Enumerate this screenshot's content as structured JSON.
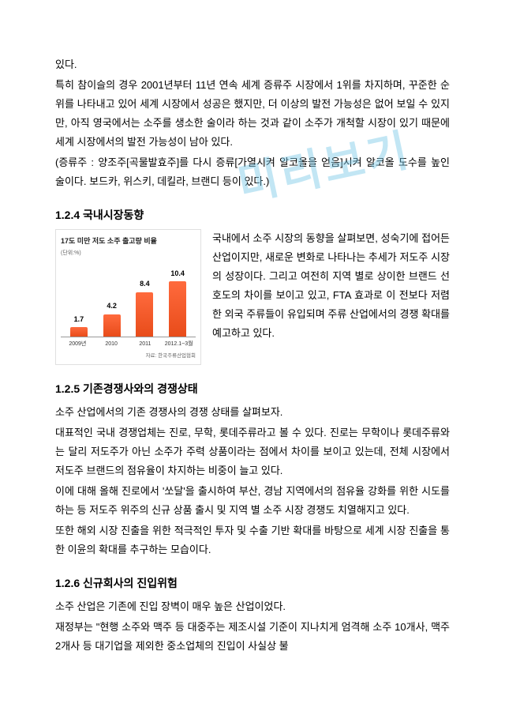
{
  "watermark": "미리보기",
  "intro": {
    "p1": "있다.",
    "p2": "특히 참이슬의 경우 2001년부터 11년 연속 세계 증류주 시장에서 1위를 차지하며, 꾸준한 순위를 나타내고 있어 세계 시장에서 성공은 했지만, 더 이상의 발전 가능성은 없어 보일 수 있지만, 아직 영국에서는 소주를 생소한 술이라 하는 것과 같이 소주가 개척할 시장이 있기 때문에 세계 시장에서의 발전 가능성이 남아 있다.",
    "p3": "(증류주 : 양조주[곡물발효주]를 다시 증류[가열시켜 알코올을 얻음]시켜 알코올 도수를 높인 술이다. 보드카, 위스키, 데킬라, 브랜디 등이 있다.)"
  },
  "s124": {
    "heading": "1.2.4 국내시장동향",
    "chart": {
      "title": "17도 미만 저도 소주 출고량 비율",
      "unit": "(단위:%)",
      "categories": [
        "2009년",
        "2010",
        "2011",
        "2012.1~3월"
      ],
      "values": [
        1.7,
        4.2,
        8.4,
        10.4
      ],
      "labels": [
        "1.7",
        "4.2",
        "8.4",
        "10.4"
      ],
      "max": 12,
      "bar_color_top": "#ff6a3d",
      "bar_color_bottom": "#e84c1a",
      "source": "자료: 한국주류산업협회"
    },
    "text": "국내에서 소주 시장의 동향을 살펴보면, 성숙기에 접어든 산업이지만, 새로운 변화로 나타나는 추세가 저도주 시장의 성장이다. 그리고 여전히 지역 별로 상이한 브랜드 선호도의 차이를 보이고 있고, FTA 효과로 이 전보다 저렴한 외국 주류들이 유입되며 주류 산업에서의 경쟁 확대를 예고하고 있다."
  },
  "s125": {
    "heading": "1.2.5 기존경쟁사와의 경쟁상태",
    "p1": "소주 산업에서의 기존 경쟁사의 경쟁 상태를 살펴보자.",
    "p2": "대표적인 국내 경쟁업체는 진로, 무학, 롯데주류라고 볼 수 있다. 진로는 무학이나 롯데주류와는 달리 저도주가 아닌 소주가 주력 상품이라는 점에서 차이를 보이고 있는데, 전체 시장에서 저도주 브랜드의 점유율이 차지하는 비중이 늘고 있다.",
    "p3": "이에 대해 올해 진로에서 '쏘달'을 출시하여 부산, 경남 지역에서의 점유율 강화를 위한 시도를 하는 등 저도주 위주의 신규 상품 출시 및 지역 별 소주 시장 경쟁도 치열해지고 있다.",
    "p4": "또한 해외 시장 진출을 위한 적극적인 투자 및 수출 기반 확대를 바탕으로 세계 시장 진출을 통한 이윤의 확대를 추구하는 모습이다."
  },
  "s126": {
    "heading": "1.2.6 신규회사의 진입위험",
    "p1": "소주 산업은 기존에 진입 장벽이 매우 높은 산업이었다.",
    "p2": "재정부는 \"현행 소주와 맥주 등 대중주는 제조시설 기준이 지나치게 엄격해 소주 10개사, 맥주 2개사 등 대기업을 제외한 중소업체의 진입이 사실상 불"
  }
}
